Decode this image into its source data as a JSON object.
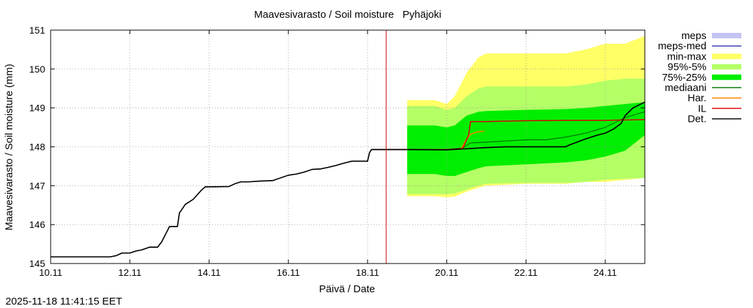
{
  "chart_data": {
    "type": "line",
    "title": "Maavesivarasto / Soil moisture   Pyhäjoki",
    "xlabel": "Päivä / Date",
    "ylabel": "Maavesivarasto / Soil moisture (mm)",
    "xlim": [
      10.0,
      25.0
    ],
    "ylim": [
      145,
      151
    ],
    "x_ticks": [
      {
        "v": 10,
        "label": "10.11"
      },
      {
        "v": 12,
        "label": "12.11"
      },
      {
        "v": 14,
        "label": "14.11"
      },
      {
        "v": 16,
        "label": "16.11"
      },
      {
        "v": 18,
        "label": "18.11"
      },
      {
        "v": 20,
        "label": "20.11"
      },
      {
        "v": 22,
        "label": "22.11"
      },
      {
        "v": 24,
        "label": "24.11"
      }
    ],
    "y_ticks": [
      145,
      146,
      147,
      148,
      149,
      150,
      151
    ],
    "forecast_start": 18.47,
    "timestamp": "2025-11-18 11:41:15 EET",
    "colors": {
      "meps": "#c4c4f4",
      "meps_med": "#3a3ab0",
      "minmax": "#ffff66",
      "p95_5": "#b4ff66",
      "p75_25": "#00ee00",
      "median": "#007a00",
      "har": "#ff8000",
      "il": "#dd0000",
      "det": "#000000",
      "vline": "#cc0000"
    },
    "legend": [
      {
        "label": "meps",
        "type": "box",
        "color": "#c4c4f4"
      },
      {
        "label": "meps-med",
        "type": "line",
        "color": "#3a3ab0"
      },
      {
        "label": "min-max",
        "type": "box",
        "color": "#ffff66"
      },
      {
        "label": "95%-5%",
        "type": "box",
        "color": "#b4ff66"
      },
      {
        "label": "75%-25%",
        "type": "box",
        "color": "#00ee00"
      },
      {
        "label": "mediaani",
        "type": "line",
        "color": "#007a00"
      },
      {
        "label": "Har.",
        "type": "line",
        "color": "#ff8000"
      },
      {
        "label": "IL",
        "type": "line",
        "color": "#dd0000"
      },
      {
        "label": "Det.",
        "type": "line",
        "color": "#000000"
      }
    ],
    "series": {
      "det": {
        "x": [
          10.0,
          11.2,
          11.5,
          11.65,
          11.8,
          12.0,
          12.15,
          12.3,
          12.5,
          12.7,
          12.8,
          12.9,
          13.0,
          13.2,
          13.25,
          13.4,
          13.6,
          13.8,
          13.9,
          14.0,
          14.5,
          14.65,
          14.8,
          15.0,
          15.3,
          15.6,
          15.8,
          16.0,
          16.2,
          16.4,
          16.6,
          16.8,
          17.0,
          17.2,
          17.4,
          17.6,
          18.0,
          18.05,
          18.1,
          18.5,
          19.0,
          20.0,
          20.5,
          21.0,
          21.5,
          22.0,
          22.5,
          23.0,
          23.1,
          23.5,
          23.8,
          24.0,
          24.2,
          24.4,
          24.5,
          24.7,
          25.0
        ],
        "y": [
          145.17,
          145.17,
          145.17,
          145.2,
          145.27,
          145.27,
          145.32,
          145.35,
          145.42,
          145.42,
          145.55,
          145.75,
          145.95,
          145.95,
          146.3,
          146.52,
          146.65,
          146.88,
          146.97,
          146.97,
          146.98,
          147.05,
          147.1,
          147.1,
          147.12,
          147.13,
          147.2,
          147.27,
          147.3,
          147.35,
          147.42,
          147.43,
          147.47,
          147.52,
          147.58,
          147.63,
          147.63,
          147.85,
          147.93,
          147.93,
          147.93,
          147.92,
          147.95,
          147.98,
          148.0,
          148.0,
          148.0,
          148.0,
          148.05,
          148.2,
          148.3,
          148.35,
          148.45,
          148.6,
          148.8,
          149.0,
          149.15
        ]
      },
      "il": {
        "x": [
          18.1,
          19.0,
          20.0,
          20.4,
          20.55,
          20.6,
          21.0,
          22.0,
          23.0,
          24.0,
          25.0
        ],
        "y": [
          147.93,
          147.93,
          147.93,
          147.95,
          148.3,
          148.65,
          148.65,
          148.67,
          148.68,
          148.68,
          148.7
        ]
      },
      "har": {
        "x": [
          20.35,
          20.5,
          20.6,
          20.75,
          20.95
        ],
        "y": [
          147.93,
          148.2,
          148.32,
          148.38,
          148.4
        ]
      },
      "median": {
        "x": [
          18.1,
          19.0,
          20.0,
          20.4,
          20.6,
          21.0,
          21.5,
          22.0,
          22.5,
          23.0,
          23.5,
          24.0,
          24.5,
          25.0
        ],
        "y": [
          147.93,
          147.93,
          147.93,
          147.97,
          148.1,
          148.12,
          148.15,
          148.18,
          148.18,
          148.25,
          148.35,
          148.5,
          148.75,
          148.9
        ]
      },
      "minmax": {
        "x": [
          19.0,
          19.7,
          20.0,
          20.2,
          20.5,
          20.8,
          21.0,
          22.0,
          23.0,
          23.5,
          24.0,
          24.5,
          25.0
        ],
        "low": [
          146.73,
          146.73,
          146.7,
          146.72,
          146.85,
          146.95,
          147.0,
          147.05,
          147.05,
          147.1,
          147.1,
          147.15,
          147.2
        ],
        "high": [
          149.2,
          149.2,
          149.1,
          149.3,
          149.9,
          150.3,
          150.4,
          150.4,
          150.4,
          150.5,
          150.65,
          150.65,
          150.85
        ]
      },
      "p95_5": {
        "x": [
          19.0,
          19.7,
          20.0,
          20.2,
          20.5,
          20.8,
          21.0,
          22.0,
          23.0,
          23.5,
          24.0,
          24.5,
          25.0
        ],
        "low": [
          146.78,
          146.78,
          146.78,
          146.8,
          146.9,
          147.0,
          147.05,
          147.07,
          147.07,
          147.1,
          147.15,
          147.18,
          147.2
        ],
        "high": [
          149.05,
          149.05,
          148.95,
          149.0,
          149.3,
          149.5,
          149.55,
          149.55,
          149.55,
          149.6,
          149.7,
          149.75,
          149.75
        ]
      },
      "p75_25": {
        "x": [
          19.0,
          19.7,
          20.0,
          20.2,
          20.5,
          20.8,
          21.0,
          22.0,
          23.0,
          23.5,
          24.0,
          24.5,
          25.0
        ],
        "low": [
          147.3,
          147.3,
          147.25,
          147.25,
          147.35,
          147.45,
          147.5,
          147.55,
          147.6,
          147.65,
          147.75,
          147.9,
          148.3
        ],
        "high": [
          148.55,
          148.55,
          148.5,
          148.55,
          148.8,
          148.9,
          148.92,
          148.95,
          148.97,
          149.0,
          149.05,
          149.1,
          149.15
        ]
      }
    }
  }
}
